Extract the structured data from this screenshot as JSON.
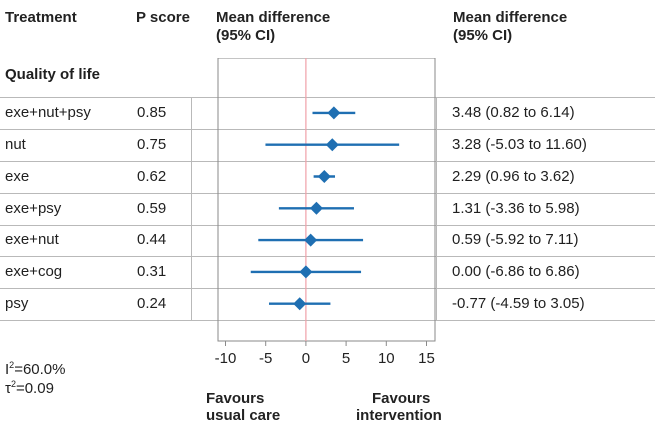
{
  "header": {
    "treatment": "Treatment",
    "pscore": "P score",
    "mean_diff_plot_line1": "Mean difference",
    "mean_diff_plot_line2": "(95% CI)",
    "mean_diff_text_line1": "Mean difference",
    "mean_diff_text_line2": "(95% CI)"
  },
  "section_label": "Quality of life",
  "rows": [
    {
      "treatment": "exe+nut+psy",
      "pscore": "0.85",
      "ci_text": "3.48 (0.82 to 6.14)"
    },
    {
      "treatment": "nut",
      "pscore": "0.75",
      "ci_text": "3.28 (-5.03 to 11.60)"
    },
    {
      "treatment": "exe",
      "pscore": "0.62",
      "ci_text": "2.29 (0.96 to 3.62)"
    },
    {
      "treatment": "exe+psy",
      "pscore": "0.59",
      "ci_text": "1.31 (-3.36 to 5.98)"
    },
    {
      "treatment": "exe+nut",
      "pscore": "0.44",
      "ci_text": "0.59 (-5.92 to 7.11)"
    },
    {
      "treatment": "exe+cog",
      "pscore": "0.31",
      "ci_text": "0.00 (-6.86 to 6.86)"
    },
    {
      "treatment": "psy",
      "pscore": "0.24",
      "ci_text": "-0.77 (-4.59 to 3.05)"
    }
  ],
  "heterogeneity": {
    "i2_symbol": "I",
    "i2_value": "=60.0%",
    "tau2_symbol": "τ",
    "tau2_value": "=0.09",
    "sup": "2"
  },
  "favours": {
    "left_line1": "Favours",
    "left_line2": "usual care",
    "right_line1": "Favours",
    "right_line2": "intervention"
  },
  "chart_data": {
    "type": "forest",
    "xlim": [
      -10,
      15
    ],
    "xticks": [
      -10,
      -5,
      0,
      5,
      10,
      15
    ],
    "reference_line": 0,
    "colors": {
      "marker": "#1f6fb2",
      "reference": "#f0a0a8",
      "frame": "#8a8a8a"
    },
    "points": [
      {
        "label": "exe+nut+psy",
        "estimate": 3.48,
        "lower": 0.82,
        "upper": 6.14
      },
      {
        "label": "nut",
        "estimate": 3.28,
        "lower": -5.03,
        "upper": 11.6
      },
      {
        "label": "exe",
        "estimate": 2.29,
        "lower": 0.96,
        "upper": 3.62
      },
      {
        "label": "exe+psy",
        "estimate": 1.31,
        "lower": -3.36,
        "upper": 5.98
      },
      {
        "label": "exe+nut",
        "estimate": 0.59,
        "lower": -5.92,
        "upper": 7.11
      },
      {
        "label": "exe+cog",
        "estimate": 0.0,
        "lower": -6.86,
        "upper": 6.86
      },
      {
        "label": "psy",
        "estimate": -0.77,
        "lower": -4.59,
        "upper": 3.05
      }
    ]
  }
}
